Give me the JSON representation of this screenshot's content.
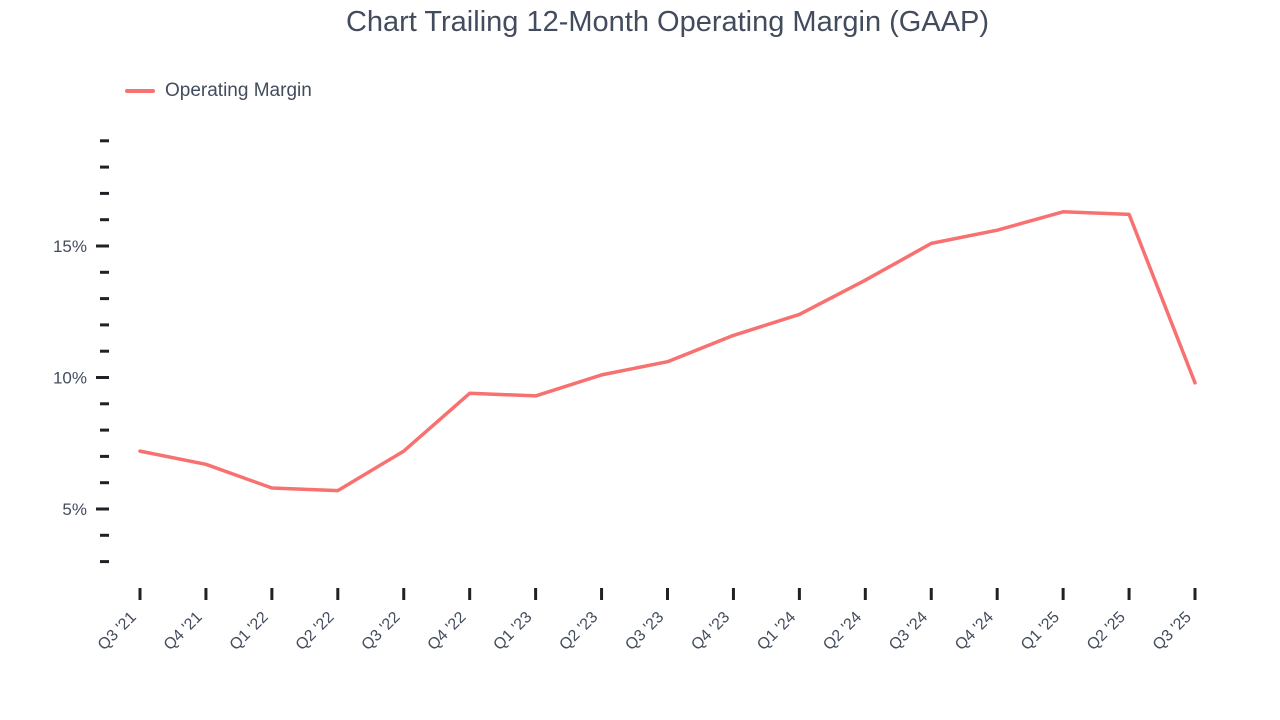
{
  "page": {
    "background": "#FFFFFF"
  },
  "chart": {
    "title": "Chart Trailing 12-Month Operating Margin (GAAP)",
    "title_color": "#424C5C",
    "legend": {
      "label": "Operating Margin",
      "swatch_color": "#F87171"
    }
  },
  "chart_data": {
    "type": "line",
    "title": "Chart Trailing 12-Month Operating Margin (GAAP)",
    "legend_position": "top-left",
    "grid": false,
    "categories": [
      "Q3 '21",
      "Q4 '21",
      "Q1 '22",
      "Q2 '22",
      "Q3 '22",
      "Q4 '22",
      "Q1 '23",
      "Q2 '23",
      "Q3 '23",
      "Q4 '23",
      "Q1 '24",
      "Q2 '24",
      "Q3 '24",
      "Q4 '24",
      "Q1 '25",
      "Q2 '25",
      "Q3 '25"
    ],
    "series": [
      {
        "name": "Operating Margin",
        "color": "#F87171",
        "values": [
          7.2,
          6.7,
          5.8,
          5.7,
          7.2,
          9.4,
          9.3,
          10.1,
          10.6,
          11.6,
          12.4,
          13.7,
          15.1,
          15.6,
          16.3,
          16.2,
          9.8
        ]
      }
    ],
    "y_axis": {
      "unit": "%",
      "tick_min": 3,
      "tick_max": 19,
      "tick_step": 1,
      "labeled_ticks": [
        5,
        10,
        15
      ],
      "labels": [
        "5%",
        "10%",
        "15%"
      ],
      "range": [
        2.5,
        19.5
      ]
    },
    "x_axis": {
      "label_rotation": -45
    },
    "axis_text_color": "#424C5C",
    "tick_mark_color": "#1E2126"
  }
}
